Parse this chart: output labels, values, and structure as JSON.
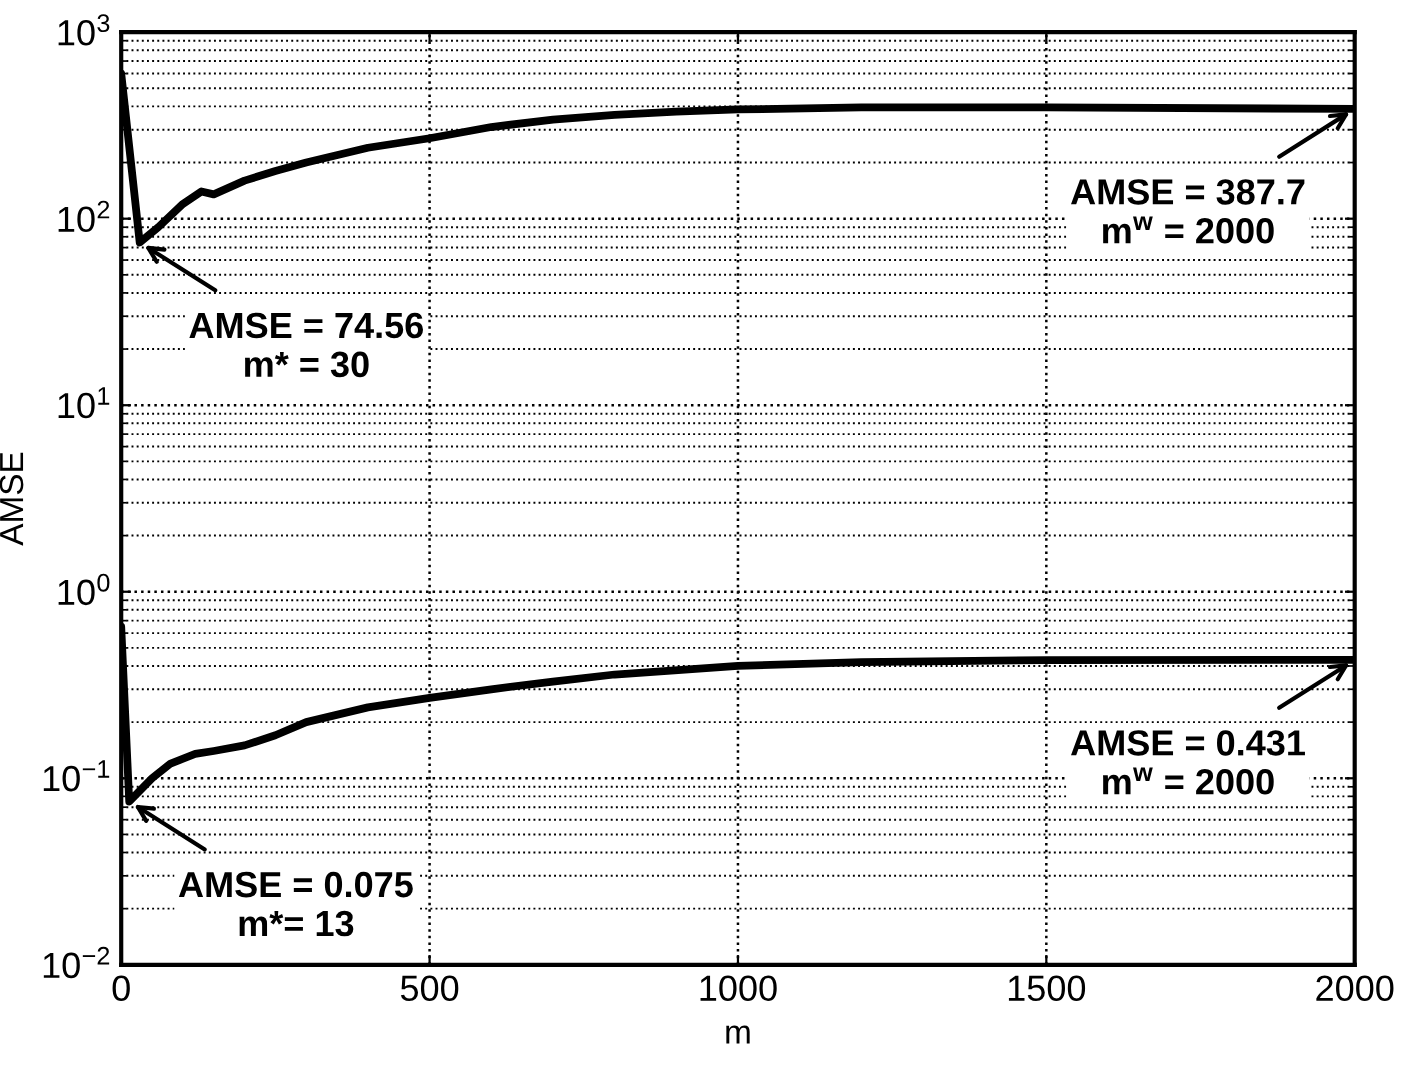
{
  "chart_data": {
    "type": "line",
    "xlabel": "m",
    "ylabel": "AMSE",
    "log": "y",
    "grid": true,
    "marker": "none",
    "line_style": "solid",
    "xlim": [
      0,
      2000
    ],
    "xticks": [
      0,
      500,
      1000,
      1500,
      2000
    ],
    "ylim": [
      0.01,
      1000
    ],
    "yticks": [
      {
        "value": 0.01,
        "label": "10$^{−2}$"
      },
      {
        "value": 0.1,
        "label": "10$^{−1}$"
      },
      {
        "value": 1,
        "label": "10$^{0}$"
      },
      {
        "value": 10,
        "label": "10$^{1}$"
      },
      {
        "value": 100,
        "label": "10$^{2}$"
      },
      {
        "value": 1000,
        "label": "10$^{3}$"
      }
    ],
    "series": [
      {
        "color": "#000000",
        "x": [
          0,
          30,
          60,
          100,
          130,
          150,
          200,
          250,
          300,
          400,
          500,
          600,
          700,
          800,
          900,
          1000,
          1200,
          1500,
          2000
        ],
        "values": [
          600,
          74.56,
          90,
          120,
          140,
          135,
          160,
          180,
          200,
          240,
          270,
          310,
          340,
          360,
          375,
          385,
          395,
          395,
          387.7
        ]
      },
      {
        "color": "#000000",
        "x": [
          0,
          13,
          50,
          80,
          120,
          150,
          200,
          250,
          300,
          400,
          500,
          600,
          700,
          800,
          1000,
          1200,
          1500,
          2000
        ],
        "values": [
          0.65,
          0.075,
          0.1,
          0.12,
          0.135,
          0.14,
          0.15,
          0.17,
          0.2,
          0.24,
          0.27,
          0.3,
          0.33,
          0.36,
          0.4,
          0.42,
          0.43,
          0.431
        ]
      }
    ],
    "annotations": [
      {
        "text": "AMSE = 387.7\nm$^{w}$ = 2000",
        "x": 2000,
        "y": 387.7
      },
      {
        "text": "AMSE = 74.56\nm* = 30",
        "x": 30,
        "y": 74.56
      },
      {
        "text": "AMSE = 0.431\nm$^{w}$ = 2000",
        "x": 2000,
        "y": 0.431
      },
      {
        "text": "AMSE = 0.075\nm*= 13",
        "x": 13,
        "y": 0.075
      }
    ]
  }
}
